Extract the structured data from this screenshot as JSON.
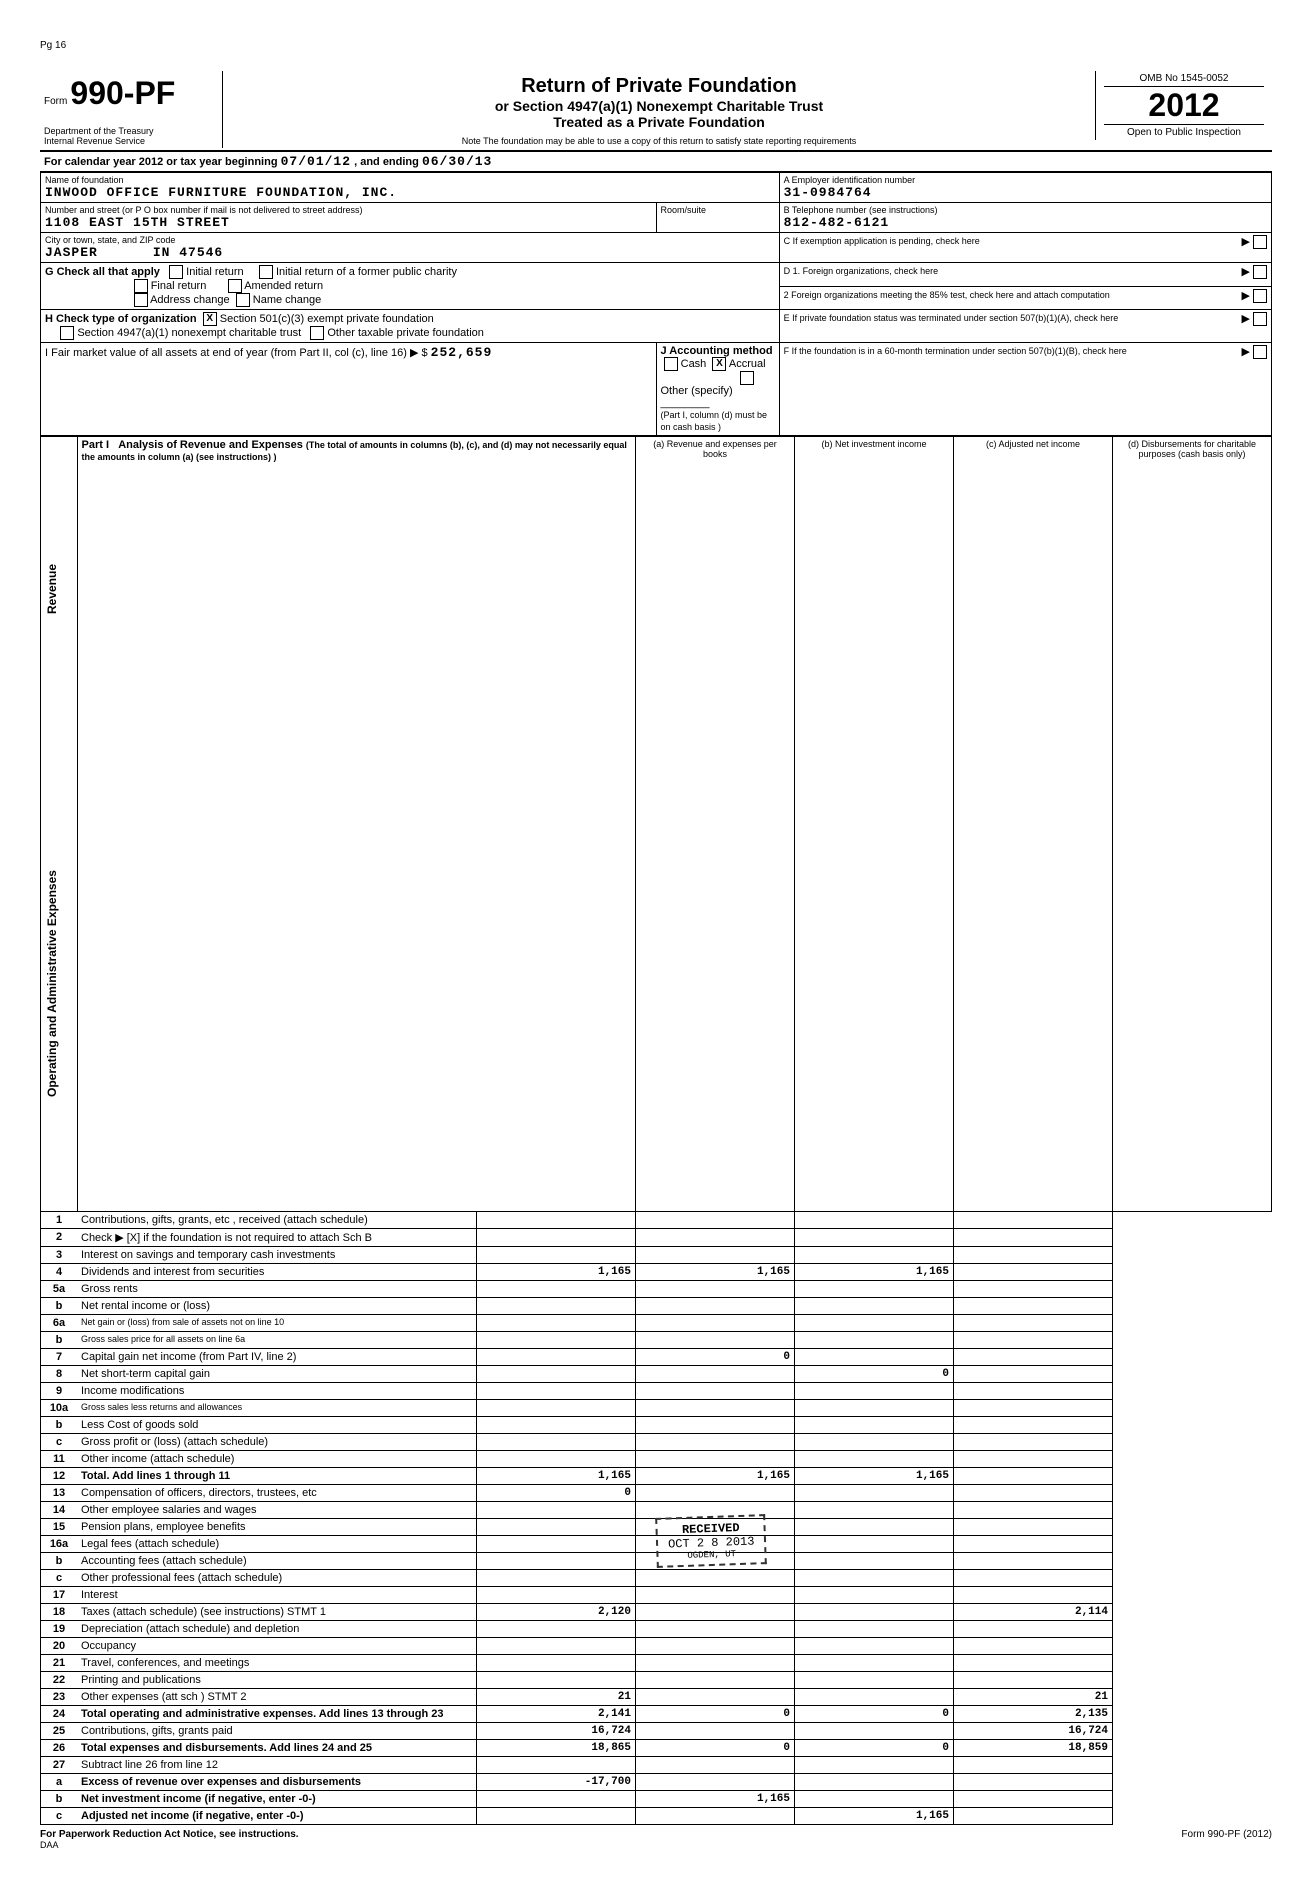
{
  "page_marker": "Pg 16",
  "form": {
    "prefix": "Form",
    "number": "990-PF",
    "dept1": "Department of the Treasury",
    "dept2": "Internal Revenue Service"
  },
  "title": {
    "main": "Return of Private Foundation",
    "sub1": "or Section 4947(a)(1) Nonexempt Charitable Trust",
    "sub2": "Treated as a Private Foundation",
    "note": "Note  The foundation may be able to use a copy of this return to satisfy state reporting requirements"
  },
  "yearbox": {
    "omb": "OMB No 1545-0052",
    "year": "2012",
    "open": "Open to Public Inspection"
  },
  "calendar_line": {
    "prefix": "For calendar year 2012 or tax year beginning",
    "begin": "07/01/12",
    "mid": ", and ending",
    "end": "06/30/13"
  },
  "foundation": {
    "name_label": "Name of foundation",
    "name": "INWOOD OFFICE FURNITURE FOUNDATION, INC.",
    "addr_label": "Number and street (or P O  box number if mail is not delivered to street address)",
    "room_label": "Room/suite",
    "street": "1108 EAST 15TH STREET",
    "city_label": "City or town, state, and ZIP code",
    "city": "JASPER",
    "state_zip": "IN  47546"
  },
  "right": {
    "A_label": "A    Employer identification number",
    "A_val": "31-0984764",
    "B_label": "B    Telephone number (see instructions)",
    "B_val": "812-482-6121",
    "C_label": "C    If exemption application is pending, check here",
    "D1": "D    1.  Foreign organizations, check here",
    "D2": "2   Foreign organizations meeting the 85% test, check here and attach computation",
    "E": "E    If private foundation status was terminated under section 507(b)(1)(A), check here",
    "F": "F    If the foundation is in a 60-month termination under section 507(b)(1)(B), check here"
  },
  "G": {
    "label": "G   Check all that apply",
    "opts": [
      "Initial return",
      "Final return",
      "Address change",
      "Initial return of a former public charity",
      "Amended return",
      "Name change"
    ]
  },
  "H": {
    "label": "H   Check type of organization",
    "o1": "Section 501(c)(3) exempt private foundation",
    "o2": "Section 4947(a)(1) nonexempt charitable trust",
    "o3": "Other taxable private foundation"
  },
  "I": {
    "label": "I    Fair market value of all assets at end of year (from Part II, col (c), line 16) ▶  $",
    "val": "252,659"
  },
  "J": {
    "label": "J   Accounting method",
    "cash": "Cash",
    "accrual": "Accrual",
    "other": "Other (specify)",
    "note": "(Part I, column (d) must be on cash basis )"
  },
  "part1": {
    "label": "Part I",
    "title": "Analysis of Revenue and Expenses",
    "sub": "(The total of amounts in columns (b), (c), and (d) may not necessarily equal the amounts in column (a) (see instructions) )",
    "cols": {
      "a": "(a) Revenue and expenses per books",
      "b": "(b) Net investment income",
      "c": "(c) Adjusted net income",
      "d": "(d) Disbursements for charitable purposes (cash basis only)"
    }
  },
  "revenue_label": "Revenue",
  "expenses_label": "Operating and Administrative Expenses",
  "rows": [
    {
      "n": "1",
      "d": "Contributions, gifts, grants, etc , received (attach schedule)"
    },
    {
      "n": "2",
      "d": "Check ▶  [X]  if the foundation is not required to attach Sch  B"
    },
    {
      "n": "3",
      "d": "Interest on savings and temporary cash investments"
    },
    {
      "n": "4",
      "d": "Dividends and interest from securities",
      "a": "1,165",
      "b": "1,165",
      "c": "1,165"
    },
    {
      "n": "5a",
      "d": "Gross rents"
    },
    {
      "n": "b",
      "d": "Net rental income or (loss)"
    },
    {
      "n": "6a",
      "d": "Net gain or (loss) from sale of assets not on line 10",
      "small": true
    },
    {
      "n": "b",
      "d": "Gross sales price for all assets on line 6a",
      "small": true
    },
    {
      "n": "7",
      "d": "Capital gain net income (from Part IV, line 2)",
      "b": "0"
    },
    {
      "n": "8",
      "d": "Net short-term capital gain",
      "c": "0"
    },
    {
      "n": "9",
      "d": "Income modifications"
    },
    {
      "n": "10a",
      "d": "Gross sales less returns and allowances",
      "small": true
    },
    {
      "n": "b",
      "d": "Less  Cost of goods sold"
    },
    {
      "n": "c",
      "d": "Gross profit or (loss) (attach schedule)"
    },
    {
      "n": "11",
      "d": "Other income (attach schedule)"
    },
    {
      "n": "12",
      "d": "Total. Add lines 1 through 11",
      "bold": true,
      "a": "1,165",
      "b": "1,165",
      "c": "1,165"
    },
    {
      "n": "13",
      "d": "Compensation of officers, directors, trustees, etc",
      "a": "0"
    },
    {
      "n": "14",
      "d": "Other employee salaries and wages"
    },
    {
      "n": "15",
      "d": "Pension plans, employee benefits"
    },
    {
      "n": "16a",
      "d": "Legal fees (attach schedule)"
    },
    {
      "n": "b",
      "d": "Accounting fees (attach schedule)"
    },
    {
      "n": "c",
      "d": "Other professional fees (attach schedule)"
    },
    {
      "n": "17",
      "d": "Interest"
    },
    {
      "n": "18",
      "d": "Taxes (attach schedule) (see instructions)       STMT 1",
      "a": "2,120",
      "dd": "2,114"
    },
    {
      "n": "19",
      "d": "Depreciation (attach schedule) and depletion"
    },
    {
      "n": "20",
      "d": "Occupancy"
    },
    {
      "n": "21",
      "d": "Travel, conferences, and meetings"
    },
    {
      "n": "22",
      "d": "Printing and publications"
    },
    {
      "n": "23",
      "d": "Other expenses (att sch )                        STMT 2",
      "a": "21",
      "dd": "21"
    },
    {
      "n": "24",
      "d": "Total operating and administrative expenses. Add lines 13 through 23",
      "bold": true,
      "a": "2,141",
      "b": "0",
      "c": "0",
      "dd": "2,135"
    },
    {
      "n": "25",
      "d": "Contributions, gifts, grants paid",
      "a": "16,724",
      "dd": "16,724"
    },
    {
      "n": "26",
      "d": "Total expenses and disbursements. Add lines 24 and 25",
      "bold": true,
      "a": "18,865",
      "b": "0",
      "c": "0",
      "dd": "18,859"
    },
    {
      "n": "27",
      "d": "Subtract line 26 from line 12"
    },
    {
      "n": "a",
      "d": "Excess of revenue over expenses and disbursements",
      "bold": true,
      "a": "-17,700"
    },
    {
      "n": "b",
      "d": "Net investment income (if negative, enter -0-)",
      "bold": true,
      "b": "1,165"
    },
    {
      "n": "c",
      "d": "Adjusted net income (if negative, enter -0-)",
      "bold": true,
      "c": "1,165"
    }
  ],
  "stamp": {
    "l1": "RECEIVED",
    "l2": "OCT 2 8 2013",
    "l3": "OGDEN, UT"
  },
  "footer": {
    "left": "For Paperwork Reduction Act Notice, see instructions.",
    "mid": "DAA",
    "right": "Form 990-PF (2012)"
  }
}
